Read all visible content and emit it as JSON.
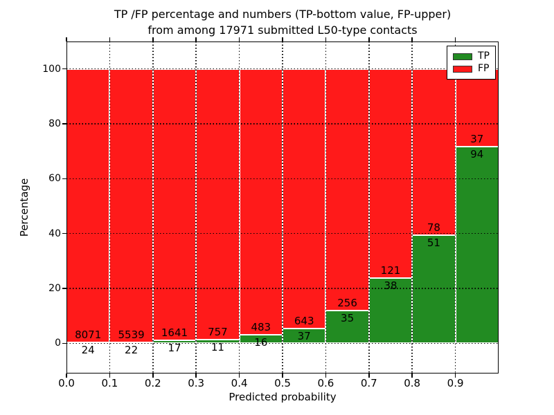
{
  "figure": {
    "title_line1": "TP /FP percentage and numbers (TP-bottom value, FP-upper)",
    "title_line2": "from among 17971 submitted L50-type contacts"
  },
  "chart_data": {
    "type": "bar",
    "stacked": true,
    "title": "TP /FP percentage and numbers (TP-bottom value, FP-upper) from among 17971 submitted L50-type contacts",
    "xlabel": "Predicted probability",
    "ylabel": "Percentage",
    "total_contacts": 17971,
    "bin_edges": [
      0.0,
      0.1,
      0.2,
      0.3,
      0.4,
      0.5,
      0.6,
      0.7,
      0.8,
      0.9,
      1.0
    ],
    "series": [
      {
        "name": "TP",
        "color": "#228B22",
        "counts": [
          24,
          22,
          17,
          11,
          16,
          37,
          35,
          38,
          51,
          94
        ]
      },
      {
        "name": "FP",
        "color": "#FF1A1A",
        "counts": [
          8071,
          5539,
          1641,
          757,
          483,
          643,
          256,
          121,
          78,
          37
        ]
      }
    ],
    "value_encoding": "bar heights are percent of bin total: count / (TP+FP) * 100; each bar stacks to 100",
    "tp_percent_approx": [
      0.3,
      0.4,
      1.0,
      1.4,
      3.2,
      5.4,
      12.0,
      23.9,
      39.5,
      71.8
    ],
    "xticks": [
      "0.0",
      "0.1",
      "0.2",
      "0.3",
      "0.4",
      "0.5",
      "0.6",
      "0.7",
      "0.8",
      "0.9"
    ],
    "yticks": [
      "0",
      "20",
      "40",
      "60",
      "80",
      "100"
    ],
    "xlim": [
      0,
      1
    ],
    "ylim": [
      -11,
      110
    ],
    "grid": "black dotted gridlines drawn on top of bars at each x tick and y tick",
    "bar_edge_color": "#FFFFFF",
    "legend": {
      "position": "upper right",
      "entries": [
        "TP",
        "FP"
      ]
    }
  }
}
